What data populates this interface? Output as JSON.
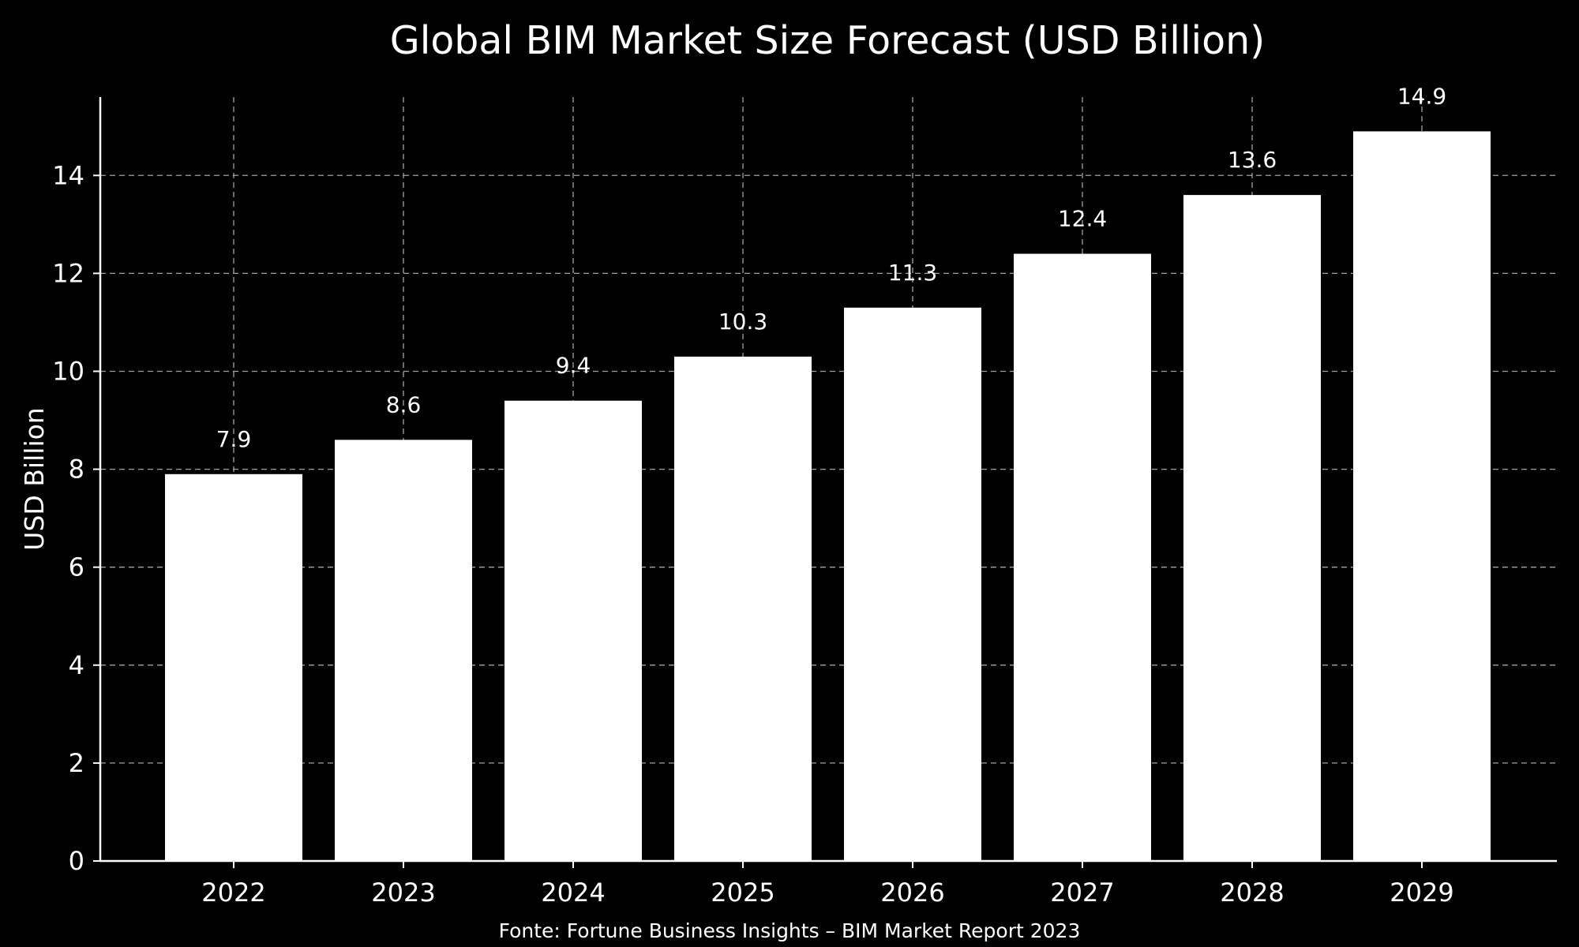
{
  "chart_data": {
    "type": "bar",
    "title": "Global BIM Market Size Forecast (USD Billion)",
    "xlabel": "",
    "ylabel": "USD Billion",
    "categories": [
      "2022",
      "2023",
      "2024",
      "2025",
      "2026",
      "2027",
      "2028",
      "2029"
    ],
    "values": [
      7.9,
      8.6,
      9.4,
      10.3,
      11.3,
      12.4,
      13.6,
      14.9
    ],
    "data_labels": [
      "7.9",
      "8.6",
      "9.4",
      "10.3",
      "11.3",
      "12.4",
      "13.6",
      "14.9"
    ],
    "ylim": [
      0,
      15.6
    ],
    "yticks": [
      0,
      2,
      4,
      6,
      8,
      10,
      12,
      14
    ],
    "grid": true,
    "bar_color": "#ffffff",
    "background": "#000000",
    "source": "Fonte: Fortune Business Insights – BIM Market Report 2023"
  }
}
